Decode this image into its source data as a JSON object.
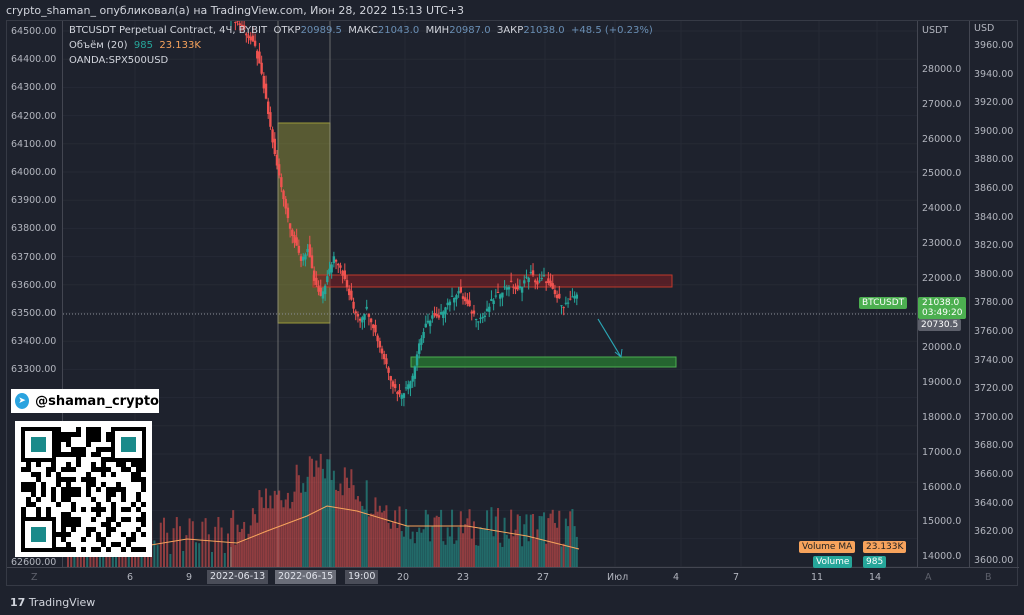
{
  "header": {
    "title": "crypto_shaman_ опубликовал(а) на TradingView.com, Июн 28, 2022 15:13 UTC+3"
  },
  "legend": {
    "symbol": "BTCUSDT Perpetual Contract, 4Ч, BYBIT",
    "open_label": "ОТКР",
    "open": "20989.5",
    "high_label": "МАКС",
    "high": "21043.0",
    "low_label": "МИН",
    "low": "20987.0",
    "close_label": "ЗАКР",
    "close": "21038.0",
    "change": "+48.5 (+0.23%)",
    "volume_label": "Объём (20)",
    "volume": "985",
    "volume_ma": "23.133K",
    "compare": "OANDA:SPX500USD"
  },
  "left_axis": [
    "64500.00",
    "64400.00",
    "64300.00",
    "64200.00",
    "64100.00",
    "64000.00",
    "63900.00",
    "63800.00",
    "63700.00",
    "63600.00",
    "63500.00",
    "63400.00",
    "63300.00",
    "62600.00"
  ],
  "usdt_axis": {
    "title": "USDT",
    "ticks": [
      "28000.0",
      "27000.0",
      "26000.0",
      "25000.0",
      "24000.0",
      "23000.0",
      "22000.0",
      "20000.0",
      "19000.0",
      "18000.0",
      "17000.0",
      "16000.0",
      "15000.0",
      "14000.0"
    ]
  },
  "usd_axis": {
    "title": "USD",
    "ticks": [
      "3960.00",
      "3940.00",
      "3920.00",
      "3900.00",
      "3880.00",
      "3860.00",
      "3840.00",
      "3820.00",
      "3800.00",
      "3780.00",
      "3760.00",
      "3740.00",
      "3720.00",
      "3700.00",
      "3680.00",
      "3660.00",
      "3640.00",
      "3620.00",
      "3600.00"
    ]
  },
  "price_tags": {
    "symbol": "BTCUSDT",
    "last": "21038.0",
    "countdown": "03:49:20",
    "prev": "20730.5",
    "volume_ma_label": "Volume MA",
    "volume_ma": "23.133K",
    "volume_label": "Volume",
    "volume": "985"
  },
  "time_axis": {
    "left_btn": "Z",
    "ticks": [
      "6",
      "9",
      "2022-06-13",
      "2022-06-15",
      "19:00",
      "20",
      "23",
      "27",
      "Июл",
      "4",
      "7",
      "11",
      "14"
    ],
    "a_btn": "A",
    "b_btn": "B"
  },
  "watermark": {
    "telegram": "@shaman_crypto"
  },
  "footer": {
    "brand": "TradingView"
  },
  "colors": {
    "up": "#26a69a",
    "down": "#ef5350",
    "green_label": "#4caf50",
    "ma": "#f7a35c"
  },
  "chart_data": {
    "type": "candlestick",
    "x_label": "",
    "y_label": "USDT",
    "closes": [
      28900,
      28700,
      28400,
      28100,
      27300,
      26200,
      25000,
      24100,
      23200,
      22500,
      22000,
      22300,
      21400,
      20900,
      21500,
      22100,
      21800,
      21200,
      20600,
      20300,
      20600,
      20100,
      19500,
      19000,
      18400,
      18100,
      18300,
      18700,
      19600,
      20100,
      20400,
      20300,
      20700,
      20900,
      21100,
      20800,
      20500,
      20300,
      20400,
      20800,
      21000,
      21200,
      21300,
      21100,
      21400,
      21600,
      21300,
      21500,
      21200,
      20900,
      20700,
      20800,
      21038
    ]
  }
}
